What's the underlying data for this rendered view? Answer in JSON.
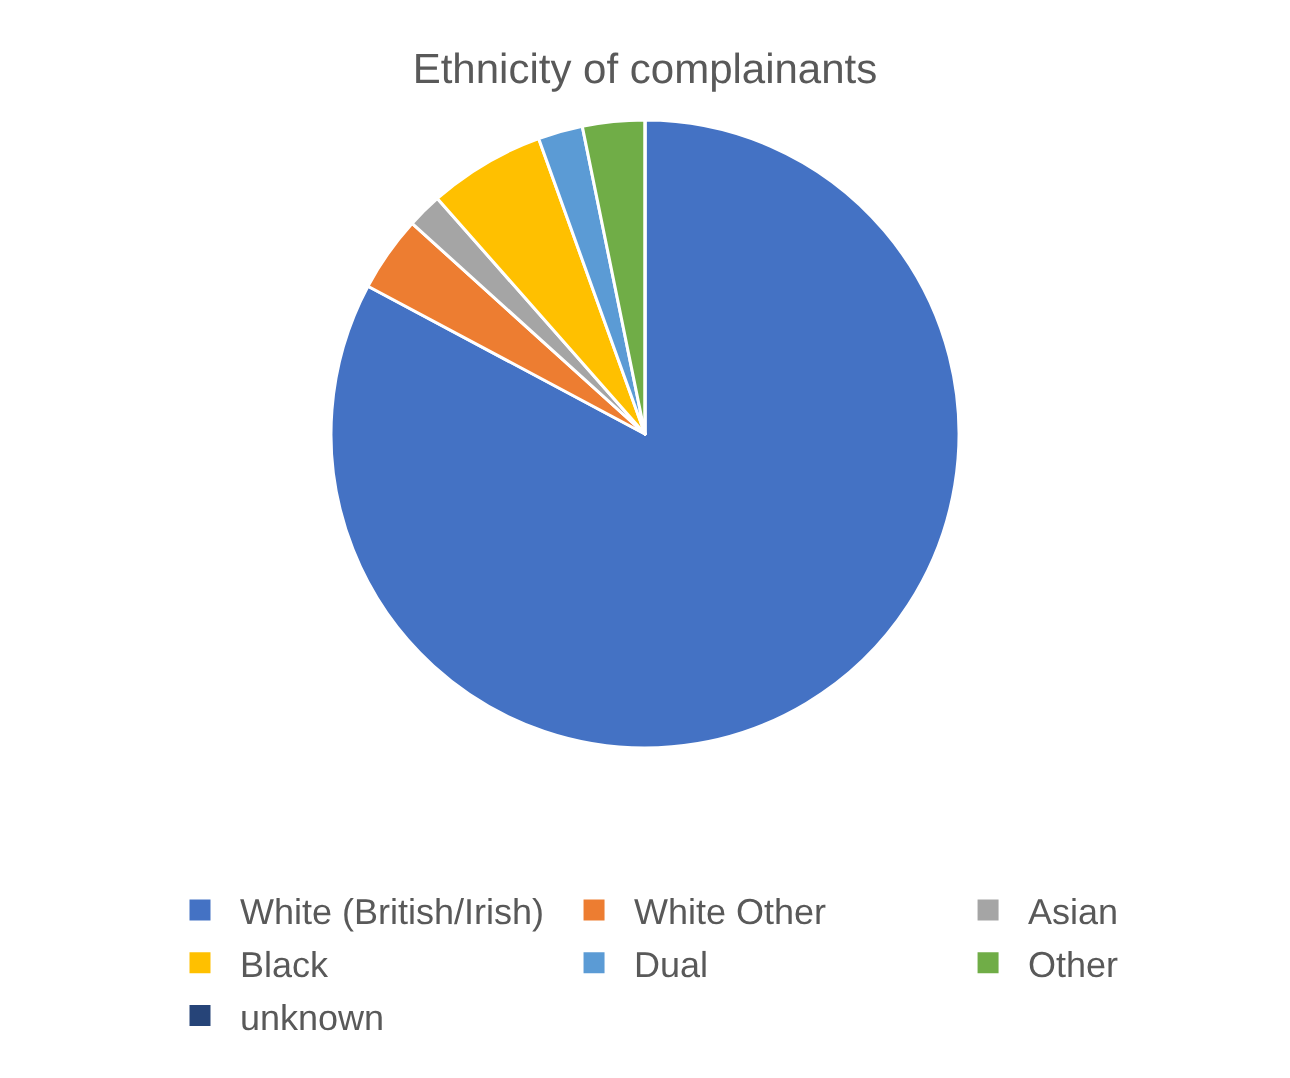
{
  "chart_data": {
    "type": "pie",
    "title": "Ethnicity of complainants",
    "categories": [
      "White (British/Irish)",
      "White Other",
      "Asian",
      "Black",
      "Dual",
      "Other",
      "unknown"
    ],
    "values": [
      82.8,
      3.9,
      1.8,
      6.0,
      2.3,
      3.2,
      0
    ],
    "colors": [
      "#4472c4",
      "#ed7d31",
      "#a5a5a5",
      "#ffc000",
      "#5b9bd5",
      "#70ad47",
      "#264478"
    ],
    "legend": "bottom"
  }
}
